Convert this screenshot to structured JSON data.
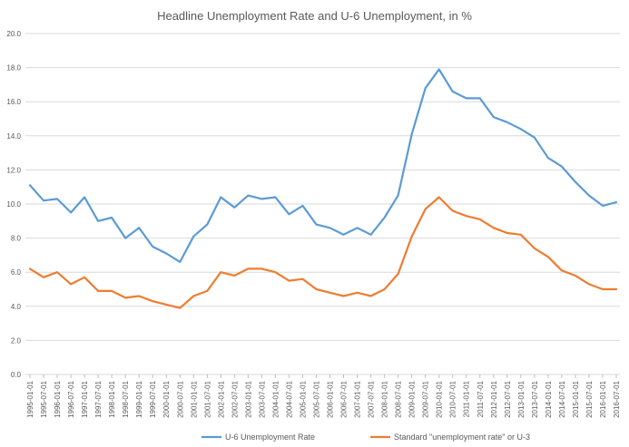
{
  "chart_data": {
    "type": "line",
    "title": "Headline Unemployment Rate and U-6 Unemployment, in %",
    "xlabel": "",
    "ylabel": "",
    "ylim": [
      0,
      20
    ],
    "yticks": [
      "0.0",
      "2.0",
      "4.0",
      "6.0",
      "8.0",
      "10.0",
      "12.0",
      "14.0",
      "16.0",
      "18.0",
      "20.0"
    ],
    "x": [
      "1995-01-01",
      "1995-07-01",
      "1996-01-01",
      "1996-07-01",
      "1997-01-01",
      "1997-07-01",
      "1998-01-01",
      "1998-07-01",
      "1999-01-01",
      "1999-07-01",
      "2000-01-01",
      "2000-07-01",
      "2001-01-01",
      "2001-07-01",
      "2002-01-01",
      "2002-07-01",
      "2003-01-01",
      "2003-07-01",
      "2004-01-01",
      "2004-07-01",
      "2005-01-01",
      "2005-07-01",
      "2006-01-01",
      "2006-07-01",
      "2007-01-01",
      "2007-07-01",
      "2008-01-01",
      "2008-07-01",
      "2009-01-01",
      "2009-07-01",
      "2010-01-01",
      "2010-07-01",
      "2011-01-01",
      "2011-07-01",
      "2012-01-01",
      "2012-07-01",
      "2013-01-01",
      "2013-07-01",
      "2014-01-01",
      "2014-07-01",
      "2015-01-01",
      "2015-07-01",
      "2016-01-01",
      "2016-07-01"
    ],
    "grid": true,
    "legend_position": "bottom",
    "series": [
      {
        "name": "U-6 Unemployment Rate",
        "color": "#5B9BD5",
        "values": [
          11.1,
          10.2,
          10.3,
          9.5,
          10.4,
          9.0,
          9.2,
          8.0,
          8.6,
          7.5,
          7.1,
          6.6,
          8.1,
          8.8,
          10.4,
          9.8,
          10.5,
          10.3,
          10.4,
          9.4,
          9.9,
          8.8,
          8.6,
          8.2,
          8.6,
          8.2,
          9.2,
          10.5,
          14.1,
          16.8,
          17.9,
          16.6,
          16.2,
          16.2,
          15.1,
          14.8,
          14.4,
          13.9,
          12.7,
          12.2,
          11.3,
          10.5,
          9.9,
          10.1
        ]
      },
      {
        "name": "Standard \"unemployment rate\" or U-3",
        "color": "#ED7D31",
        "values": [
          6.2,
          5.7,
          6.0,
          5.3,
          5.7,
          4.9,
          4.9,
          4.5,
          4.6,
          4.3,
          4.1,
          3.9,
          4.6,
          4.9,
          6.0,
          5.8,
          6.2,
          6.2,
          6.0,
          5.5,
          5.6,
          5.0,
          4.8,
          4.6,
          4.8,
          4.6,
          5.0,
          5.9,
          8.1,
          9.7,
          10.4,
          9.6,
          9.3,
          9.1,
          8.6,
          8.3,
          8.2,
          7.4,
          6.9,
          6.1,
          5.8,
          5.3,
          5.0,
          5.0
        ]
      }
    ]
  }
}
